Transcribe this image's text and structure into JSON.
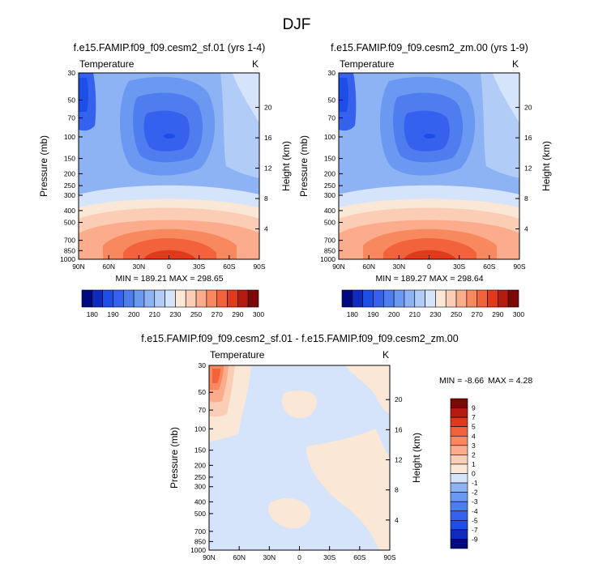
{
  "page_title": "DJF",
  "colors": {
    "temperature_levels": [
      "#000a7f",
      "#0f2bbd",
      "#1d4ee6",
      "#3462ee",
      "#4e7df0",
      "#6b99f2",
      "#8eb3f5",
      "#b1cdf7",
      "#d5e4fb",
      "#fbe7d6",
      "#fccdb5",
      "#fbac8c",
      "#f8895f",
      "#f2633c",
      "#e03a1b",
      "#b51b10",
      "#7e0807"
    ],
    "difference_levels": [
      "#000a7f",
      "#0f2bbd",
      "#1d4ee6",
      "#3462ee",
      "#4e7df0",
      "#6b99f2",
      "#8eb3f5",
      "#d5e4fb",
      "#fbe7d6",
      "#fccdb5",
      "#fbac8c",
      "#f8895f",
      "#f2633c",
      "#e03a1b",
      "#b51b10",
      "#7e0807"
    ]
  },
  "chart_data": [
    {
      "type": "heatmap",
      "title": "f.e15.FAMIP.f09_f09.cesm2_sf.01 (yrs 1-4)",
      "field_label": "Temperature",
      "units": "K",
      "ylabel": "Pressure (mb)",
      "ylabel_right": "Height (km)",
      "x_ticks": [
        "90N",
        "60N",
        "30N",
        "0",
        "30S",
        "60S",
        "90S"
      ],
      "y_ticks": [
        "30",
        "50",
        "70",
        "100",
        "150",
        "200",
        "250",
        "300",
        "400",
        "500",
        "700",
        "850",
        "1000"
      ],
      "y_right_ticks": [
        "20",
        "16",
        "12",
        "8",
        "4"
      ],
      "min_max": "MIN = 189.21   MAX = 298.65",
      "colorbar_labels": [
        "180",
        "190",
        "200",
        "210",
        "230",
        "250",
        "270",
        "290",
        "300"
      ]
    },
    {
      "type": "heatmap",
      "title": "f.e15.FAMIP.f09_f09.cesm2_zm.00 (yrs 1-9)",
      "field_label": "Temperature",
      "units": "K",
      "ylabel": "Pressure (mb)",
      "ylabel_right": "Height (km)",
      "x_ticks": [
        "90N",
        "60N",
        "30N",
        "0",
        "30S",
        "60S",
        "90S"
      ],
      "y_ticks": [
        "30",
        "50",
        "70",
        "100",
        "150",
        "200",
        "250",
        "300",
        "400",
        "500",
        "700",
        "850",
        "1000"
      ],
      "y_right_ticks": [
        "20",
        "16",
        "12",
        "8",
        "4"
      ],
      "min_max": "MIN = 189.27   MAX = 298.64",
      "colorbar_labels": [
        "180",
        "190",
        "200",
        "210",
        "230",
        "250",
        "270",
        "290",
        "300"
      ]
    },
    {
      "type": "heatmap",
      "title": "f.e15.FAMIP.f09_f09.cesm2_sf.01 - f.e15.FAMIP.f09_f09.cesm2_zm.00",
      "field_label": "Temperature",
      "units": "K",
      "ylabel": "Pressure (mb)",
      "ylabel_right": "Height (km)",
      "x_ticks": [
        "90N",
        "60N",
        "30N",
        "0",
        "30S",
        "60S",
        "90S"
      ],
      "y_ticks": [
        "30",
        "50",
        "70",
        "100",
        "150",
        "200",
        "250",
        "300",
        "400",
        "500",
        "700",
        "850",
        "1000"
      ],
      "y_right_ticks": [
        "20",
        "16",
        "12",
        "8",
        "4"
      ],
      "min_text": "MIN = -8.66",
      "max_text": "MAX =  4.28",
      "colorbar_labels": [
        "9",
        "7",
        "5",
        "4",
        "3",
        "2",
        "1",
        "0",
        "-1",
        "-2",
        "-3",
        "-4",
        "-5",
        "-7",
        "-9"
      ]
    }
  ]
}
